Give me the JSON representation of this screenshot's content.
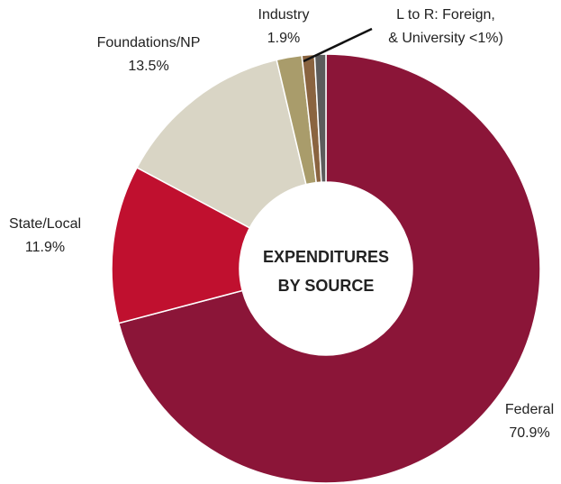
{
  "chart_data": {
    "type": "pie",
    "categories": [
      "Federal",
      "State/Local",
      "Foundations/NP",
      "Industry",
      null,
      null
    ],
    "values": [
      70.9,
      11.9,
      13.5,
      1.9,
      0.95,
      0.85
    ],
    "value_labels": [
      "70.9%",
      "11.9%",
      "13.5%",
      "1.9%",
      null,
      null
    ],
    "colors": [
      "#8b1538",
      "#c0102f",
      "#d9d5c5",
      "#a99c6b",
      "#8a6440",
      "#5c5c5c"
    ],
    "donut": true,
    "center_text": [
      "EXPENDITURES",
      "BY SOURCE"
    ],
    "annotation": [
      "L to R: Foreign,",
      "& University <1%)"
    ]
  }
}
